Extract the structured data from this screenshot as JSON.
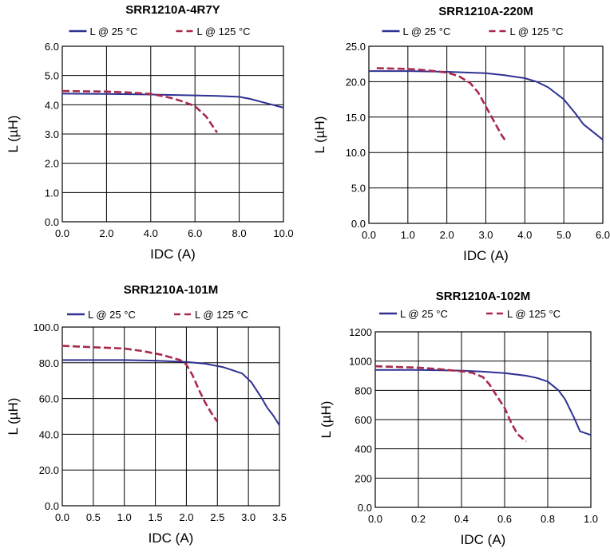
{
  "colors": {
    "l25": "#2e3192",
    "l125": "#a8294b",
    "grid": "#000000"
  },
  "chart_data": [
    {
      "type": "line",
      "title": "SRR1210A-4R7Y",
      "xlabel": "IDC (A)",
      "ylabel": "L (µH)",
      "xlim": [
        0,
        10
      ],
      "ylim": [
        0,
        6
      ],
      "x_ticks": [
        "0.0",
        "2.0",
        "4.0",
        "6.0",
        "8.0",
        "10.0"
      ],
      "y_ticks": [
        "0.0",
        "1.0",
        "2.0",
        "3.0",
        "4.0",
        "5.0",
        "6.0"
      ],
      "grid": true,
      "legend": "top",
      "series": [
        {
          "name": "L @ 25 °C",
          "style": "solid",
          "points": [
            [
              0,
              4.38
            ],
            [
              2,
              4.37
            ],
            [
              4,
              4.35
            ],
            [
              6,
              4.32
            ],
            [
              7,
              4.3
            ],
            [
              8,
              4.27
            ],
            [
              8.5,
              4.2
            ],
            [
              9,
              4.1
            ],
            [
              9.5,
              4.0
            ],
            [
              10,
              3.9
            ]
          ]
        },
        {
          "name": "L @ 125 °C",
          "style": "dashed",
          "points": [
            [
              0,
              4.47
            ],
            [
              2,
              4.45
            ],
            [
              3,
              4.42
            ],
            [
              4,
              4.37
            ],
            [
              4.5,
              4.3
            ],
            [
              5,
              4.22
            ],
            [
              5.5,
              4.1
            ],
            [
              6,
              3.95
            ],
            [
              6.5,
              3.6
            ],
            [
              7,
              3.05
            ]
          ]
        }
      ]
    },
    {
      "type": "line",
      "title": "SRR1210A-220M",
      "xlabel": "IDC (A)",
      "ylabel": "L (µH)",
      "xlim": [
        0,
        6
      ],
      "ylim": [
        0,
        25
      ],
      "x_ticks": [
        "0.0",
        "1.0",
        "2.0",
        "3.0",
        "4.0",
        "5.0",
        "6.0"
      ],
      "y_ticks": [
        "0.0",
        "5.0",
        "10.0",
        "15.0",
        "20.0",
        "25.0"
      ],
      "grid": true,
      "legend": "top",
      "series": [
        {
          "name": "L @ 25 °C",
          "style": "solid",
          "points": [
            [
              0,
              21.5
            ],
            [
              1,
              21.5
            ],
            [
              2,
              21.4
            ],
            [
              3,
              21.2
            ],
            [
              3.5,
              20.9
            ],
            [
              4,
              20.5
            ],
            [
              4.3,
              20.0
            ],
            [
              4.6,
              19.2
            ],
            [
              5,
              17.5
            ],
            [
              5.3,
              15.5
            ],
            [
              5.5,
              14.0
            ],
            [
              6,
              11.8
            ]
          ]
        },
        {
          "name": "L @ 125 °C",
          "style": "dashed",
          "points": [
            [
              0.2,
              21.9
            ],
            [
              1,
              21.8
            ],
            [
              1.5,
              21.6
            ],
            [
              2,
              21.3
            ],
            [
              2.3,
              20.8
            ],
            [
              2.6,
              19.8
            ],
            [
              2.8,
              18.5
            ],
            [
              3.0,
              16.5
            ],
            [
              3.2,
              14.5
            ],
            [
              3.4,
              12.5
            ],
            [
              3.5,
              11.7
            ]
          ]
        }
      ]
    },
    {
      "type": "line",
      "title": "SRR1210A-101M",
      "xlabel": "IDC (A)",
      "ylabel": "L (µH)",
      "xlim": [
        0,
        3.5
      ],
      "ylim": [
        0,
        100
      ],
      "x_ticks": [
        "0.0",
        "0.5",
        "1.0",
        "1.5",
        "2.0",
        "2.5",
        "3.0",
        "3.5"
      ],
      "y_ticks": [
        "0.0",
        "20.0",
        "40.0",
        "60.0",
        "80.0",
        "100.0"
      ],
      "grid": true,
      "legend": "top",
      "series": [
        {
          "name": "L @ 25 °C",
          "style": "solid",
          "points": [
            [
              0,
              81.5
            ],
            [
              1,
              81.5
            ],
            [
              1.5,
              81.2
            ],
            [
              2,
              80.5
            ],
            [
              2.3,
              79.5
            ],
            [
              2.6,
              77.5
            ],
            [
              2.9,
              74
            ],
            [
              3.05,
              69
            ],
            [
              3.2,
              61
            ],
            [
              3.3,
              55
            ],
            [
              3.4,
              50.5
            ],
            [
              3.5,
              45
            ]
          ]
        },
        {
          "name": "L @ 125 °C",
          "style": "dashed",
          "points": [
            [
              0,
              89.5
            ],
            [
              0.5,
              88.7
            ],
            [
              1,
              88.0
            ],
            [
              1.3,
              86.5
            ],
            [
              1.6,
              84.5
            ],
            [
              1.9,
              81.5
            ],
            [
              2.0,
              79
            ],
            [
              2.1,
              73
            ],
            [
              2.2,
              65
            ],
            [
              2.3,
              58
            ],
            [
              2.4,
              52
            ],
            [
              2.5,
              47
            ]
          ]
        }
      ]
    },
    {
      "type": "line",
      "title": "SRR1210A-102M",
      "xlabel": "IDC (A)",
      "ylabel": "L (µH)",
      "xlim": [
        0,
        1
      ],
      "ylim": [
        0,
        1200
      ],
      "x_ticks": [
        "0.0",
        "0.2",
        "0.4",
        "0.6",
        "0.8",
        "1.0"
      ],
      "y_ticks": [
        "0.0",
        "200",
        "400",
        "600",
        "800",
        "1000",
        "1200"
      ],
      "grid": true,
      "legend": "top",
      "series": [
        {
          "name": "L @ 25 °C",
          "style": "solid",
          "points": [
            [
              0,
              940
            ],
            [
              0.2,
              940
            ],
            [
              0.4,
              935
            ],
            [
              0.5,
              928
            ],
            [
              0.6,
              918
            ],
            [
              0.7,
              900
            ],
            [
              0.75,
              885
            ],
            [
              0.8,
              860
            ],
            [
              0.85,
              800
            ],
            [
              0.88,
              740
            ],
            [
              0.92,
              620
            ],
            [
              0.95,
              520
            ],
            [
              1.0,
              495
            ]
          ]
        },
        {
          "name": "L @ 125 °C",
          "style": "dashed",
          "points": [
            [
              0,
              965
            ],
            [
              0.1,
              960
            ],
            [
              0.2,
              955
            ],
            [
              0.3,
              945
            ],
            [
              0.4,
              930
            ],
            [
              0.45,
              920
            ],
            [
              0.5,
              890
            ],
            [
              0.53,
              840
            ],
            [
              0.56,
              770
            ],
            [
              0.6,
              680
            ],
            [
              0.63,
              580
            ],
            [
              0.66,
              500
            ],
            [
              0.7,
              450
            ]
          ]
        }
      ]
    }
  ]
}
